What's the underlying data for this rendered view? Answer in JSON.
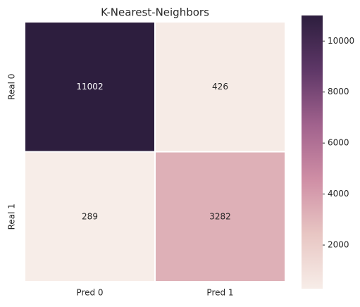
{
  "chart_data": {
    "type": "heatmap",
    "title": "K-Nearest-Neighbors",
    "x_categories": [
      "Pred 0",
      "Pred 1"
    ],
    "y_categories": [
      "Real 0",
      "Real 1"
    ],
    "values": [
      [
        11002,
        426
      ],
      [
        289,
        3282
      ]
    ],
    "clim": [
      289,
      11002
    ],
    "cticks": [
      2000,
      4000,
      6000,
      8000,
      10000
    ],
    "colormap": [
      "#f7ede8",
      "#e8c6c3",
      "#cf8ea5",
      "#a1628d",
      "#5e3767",
      "#2d1e3e"
    ]
  }
}
